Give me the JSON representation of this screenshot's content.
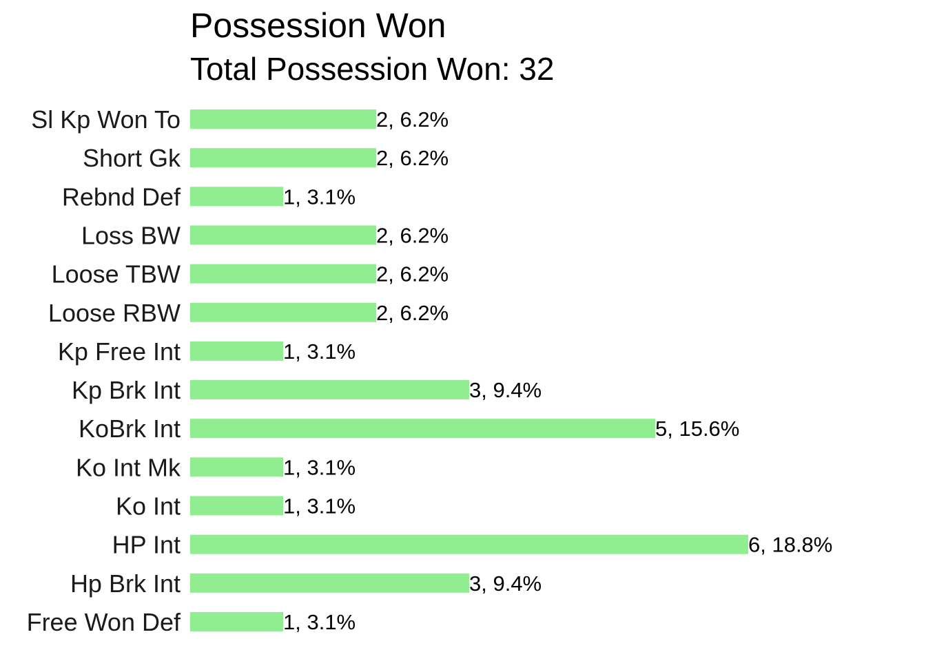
{
  "chart_data": {
    "type": "bar",
    "orientation": "horizontal",
    "title": "Possession Won",
    "subtitle": "Total Possession Won: 32",
    "categories": [
      "Sl Kp Won To",
      "Short Gk",
      "Rebnd Def",
      "Loss BW",
      "Loose TBW",
      "Loose RBW",
      "Kp Free Int",
      "Kp Brk Int",
      "KoBrk Int",
      "Ko Int Mk",
      "Ko Int",
      "HP Int",
      "Hp Brk Int",
      "Free Won Def"
    ],
    "values": [
      2,
      2,
      1,
      2,
      2,
      2,
      1,
      3,
      5,
      1,
      1,
      6,
      3,
      1
    ],
    "data_labels": [
      "2, 6.2%",
      "2, 6.2%",
      "1, 3.1%",
      "2, 6.2%",
      "2, 6.2%",
      "2, 6.2%",
      "1, 3.1%",
      "3, 9.4%",
      "5, 15.6%",
      "1, 3.1%",
      "1, 3.1%",
      "6, 18.8%",
      "3, 9.4%",
      "1, 3.1%"
    ],
    "xlim": [
      0,
      6
    ],
    "bar_color": "#90EE90",
    "grid": false,
    "axes_visible": false,
    "legend": "none"
  }
}
